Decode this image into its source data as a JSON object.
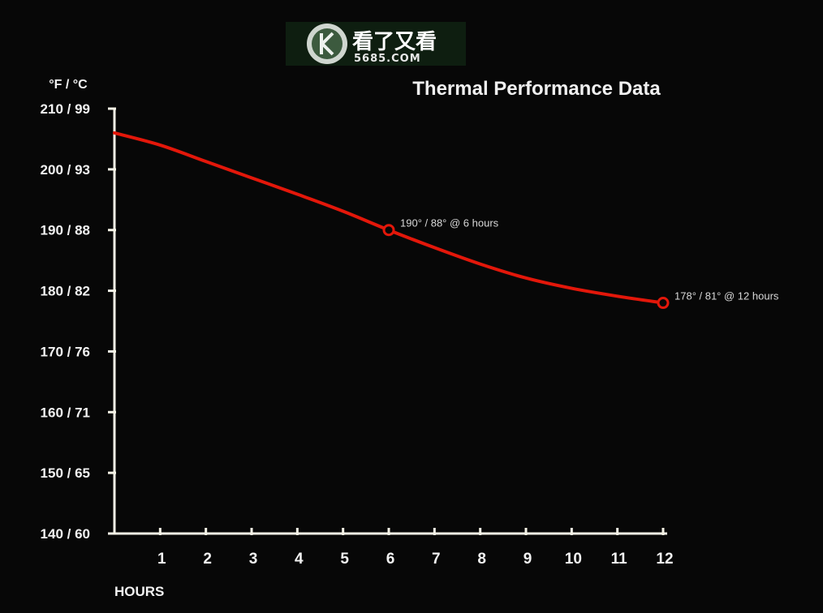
{
  "watermark": {
    "name": "看了又看",
    "url": "5685.COM"
  },
  "chart_data": {
    "type": "line",
    "title": "Thermal Performance Data",
    "ylabel": "°F / °C",
    "xlabel": "HOURS",
    "xlim": [
      0,
      12
    ],
    "ylim": [
      140,
      210
    ],
    "x_ticks": [
      1,
      2,
      3,
      4,
      5,
      6,
      7,
      8,
      9,
      10,
      11,
      12
    ],
    "y_ticks": [
      {
        "value": 140,
        "label": "140 / 60"
      },
      {
        "value": 150,
        "label": "150 / 65"
      },
      {
        "value": 160,
        "label": "160 / 71"
      },
      {
        "value": 170,
        "label": "170 / 76"
      },
      {
        "value": 180,
        "label": "180 / 82"
      },
      {
        "value": 190,
        "label": "190 / 88"
      },
      {
        "value": 200,
        "label": "200 / 93"
      },
      {
        "value": 210,
        "label": "210 / 99"
      }
    ],
    "grid": false,
    "line_color": "#e3170a",
    "series": [
      {
        "x": [
          0,
          1,
          2,
          3,
          4,
          5,
          6,
          7,
          8,
          9,
          10,
          11,
          12
        ],
        "values": [
          206,
          204,
          201.3,
          198.6,
          195.9,
          193.1,
          190,
          187.1,
          184.4,
          182.1,
          180.4,
          179.1,
          178
        ]
      }
    ],
    "annotations": [
      {
        "x": 6,
        "y": 190,
        "text": "190° / 88° @ 6 hours"
      },
      {
        "x": 12,
        "y": 178,
        "text": "178° / 81° @ 12 hours"
      }
    ]
  }
}
